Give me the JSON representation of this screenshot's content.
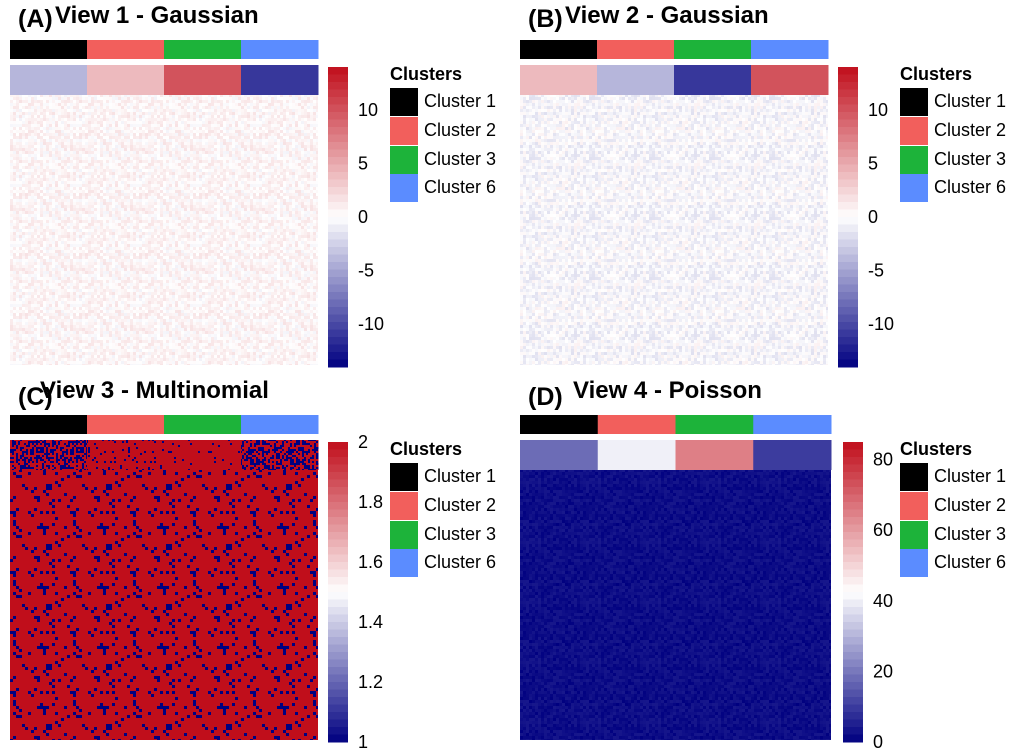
{
  "chart_data": [
    {
      "type": "heatmap",
      "panel_label": "(A)",
      "title": "View 1 - Gaussian",
      "column_clusters": [
        "Cluster 1",
        "Cluster 2",
        "Cluster 3",
        "Cluster 6"
      ],
      "top_block_values": [
        -4,
        4,
        10,
        -11
      ],
      "background_value": 0.5,
      "noise": 1.2,
      "scale": {
        "min": -14,
        "max": 14,
        "ticks": [
          10,
          5,
          0,
          -5,
          -10
        ]
      },
      "legend": {
        "title": "Clusters",
        "items": [
          "Cluster 1",
          "Cluster 2",
          "Cluster 3",
          "Cluster 6"
        ]
      }
    },
    {
      "type": "heatmap",
      "panel_label": "(B)",
      "title": "View 2 - Gaussian",
      "column_clusters": [
        "Cluster 1",
        "Cluster 2",
        "Cluster 3",
        "Cluster 6"
      ],
      "top_block_values": [
        4,
        -4,
        -11,
        10
      ],
      "background_value": -0.4,
      "noise": 1.3,
      "scale": {
        "min": -14,
        "max": 14,
        "ticks": [
          10,
          5,
          0,
          -5,
          -10
        ]
      },
      "legend": {
        "title": "Clusters",
        "items": [
          "Cluster 1",
          "Cluster 2",
          "Cluster 3",
          "Cluster 6"
        ]
      }
    },
    {
      "type": "heatmap",
      "panel_label": "(C)",
      "title": "View 3 - Multinomial",
      "column_clusters": [
        "Cluster 1",
        "Cluster 2",
        "Cluster 3",
        "Cluster 6"
      ],
      "top_block_values": [
        1.55,
        1.9,
        1.97,
        1.5
      ],
      "background_value": 1.88,
      "noise": 0,
      "binary_levels": [
        1,
        2
      ],
      "scale": {
        "min": 1,
        "max": 2,
        "ticks": [
          2,
          1.8,
          1.6,
          1.4,
          1.2,
          1
        ]
      },
      "legend": {
        "title": "Clusters",
        "items": [
          "Cluster 1",
          "Cluster 2",
          "Cluster 3",
          "Cluster 6"
        ]
      }
    },
    {
      "type": "heatmap",
      "panel_label": "(D)",
      "title": "View 4 - Poisson",
      "column_clusters": [
        "Cluster 1",
        "Cluster 2",
        "Cluster 3",
        "Cluster 6"
      ],
      "top_block_values": [
        18,
        40,
        65,
        10
      ],
      "background_value": 2,
      "noise": 2,
      "scale": {
        "min": 0,
        "max": 85,
        "ticks": [
          80,
          60,
          40,
          20,
          0
        ]
      },
      "legend": {
        "title": "Clusters",
        "items": [
          "Cluster 1",
          "Cluster 2",
          "Cluster 3",
          "Cluster 6"
        ]
      }
    }
  ],
  "cluster_colors": {
    "Cluster 1": "#000000",
    "Cluster 2": "#f25f5c",
    "Cluster 3": "#1db33a",
    "Cluster 6": "#5b8cff"
  },
  "colors": {
    "low": "#000080",
    "mid": "#ffffff",
    "high": "#c00e1b"
  }
}
